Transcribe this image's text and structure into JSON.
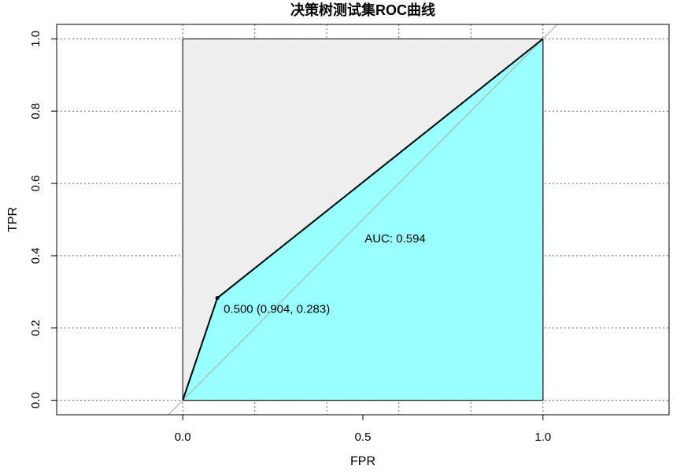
{
  "chart_data": {
    "type": "line",
    "title": "决策树测试集ROC曲线",
    "xlabel": "FPR",
    "ylabel": "TPR",
    "xlim": [
      -0.35,
      1.35
    ],
    "ylim": [
      -0.04,
      1.04
    ],
    "x_ticks": [
      0.0,
      0.5,
      1.0
    ],
    "x_tick_labels": [
      "0.0",
      "0.5",
      "1.0"
    ],
    "y_ticks": [
      0.0,
      0.2,
      0.4,
      0.6,
      0.8,
      1.0
    ],
    "y_tick_labels": [
      "0.0",
      "0.2",
      "0.4",
      "0.6",
      "0.8",
      "1.0"
    ],
    "grid": true,
    "grid_x_lines": [
      0.0,
      0.2,
      0.4,
      0.6,
      0.8,
      1.0
    ],
    "series": [
      {
        "x": [
          0.0,
          0.096,
          1.0
        ],
        "y": [
          0.0,
          0.283,
          1.0
        ],
        "color": "#000000"
      }
    ],
    "diagonal": {
      "x": [
        -0.04,
        1.04
      ],
      "y": [
        -0.04,
        1.04
      ],
      "color": "#aaaaaa"
    },
    "unit_square": {
      "x": [
        0,
        1
      ],
      "y": [
        0,
        1
      ],
      "color": "#eeeeee"
    },
    "auc_fill_color": "#99ffff",
    "threshold_point": {
      "x": 0.096,
      "y": 0.283,
      "label": "0.500 (0.904, 0.283)"
    },
    "auc_label": {
      "text": "AUC: 0.594",
      "x": 0.5,
      "y": 0.48
    },
    "colors": {
      "grid": "#666666",
      "frame": "#000000",
      "square_fill": "#eeeeee",
      "auc_fill": "#99ffff",
      "curve": "#000000",
      "diagonal": "#aaaaaa"
    }
  }
}
